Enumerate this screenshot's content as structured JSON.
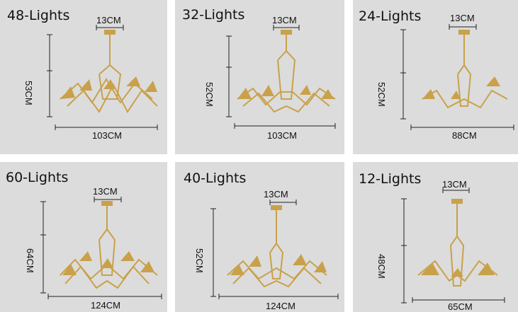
{
  "colors": {
    "panel_bg": "#dcdcdc",
    "gold": "#c9a14a",
    "crystal": "#eeeae0"
  },
  "panels": [
    {
      "title": "48-Lights",
      "canopy": "13CM",
      "height": "53CM",
      "width": "103CM"
    },
    {
      "title": "32-Lights",
      "canopy": "13CM",
      "height": "52CM",
      "width": "103CM"
    },
    {
      "title": "24-Lights",
      "canopy": "13CM",
      "height": "52CM",
      "width": "88CM"
    },
    {
      "title": "60-Lights",
      "canopy": "13CM",
      "height": "64CM",
      "width": "124CM"
    },
    {
      "title": "40-Lights",
      "canopy": "13CM",
      "height": "52CM",
      "width": "124CM"
    },
    {
      "title": "12-Lights",
      "canopy": "13CM",
      "height": "48CM",
      "width": "65CM"
    }
  ]
}
